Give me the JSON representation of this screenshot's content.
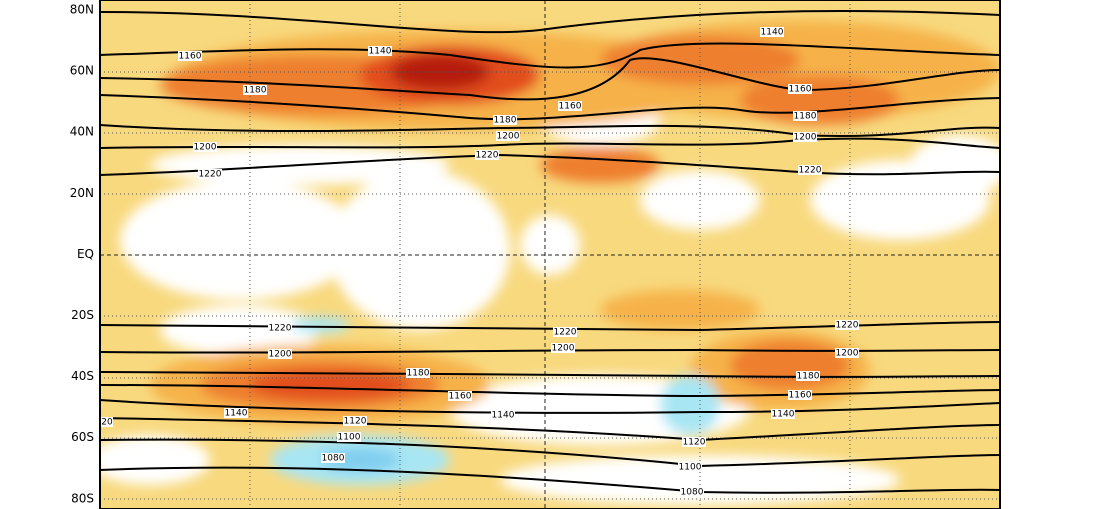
{
  "axis": {
    "lat_labels": [
      "80N",
      "60N",
      "40N",
      "20N",
      "EQ",
      "20S",
      "40S",
      "60S",
      "80S"
    ]
  },
  "contours": {
    "labels": [
      "1160",
      "1140",
      "1180",
      "1200",
      "1220",
      "1140",
      "1160",
      "1180",
      "1200",
      "1220",
      "1160",
      "1180",
      "1200",
      "1220",
      "1220",
      "1200",
      "1220",
      "1200",
      "1220",
      "1200",
      "1180",
      "1160",
      "1140",
      "1180",
      "1160",
      "1140",
      "1140",
      "1120",
      "1100",
      "1080",
      "1120",
      "1100",
      "1080",
      "20"
    ]
  }
}
